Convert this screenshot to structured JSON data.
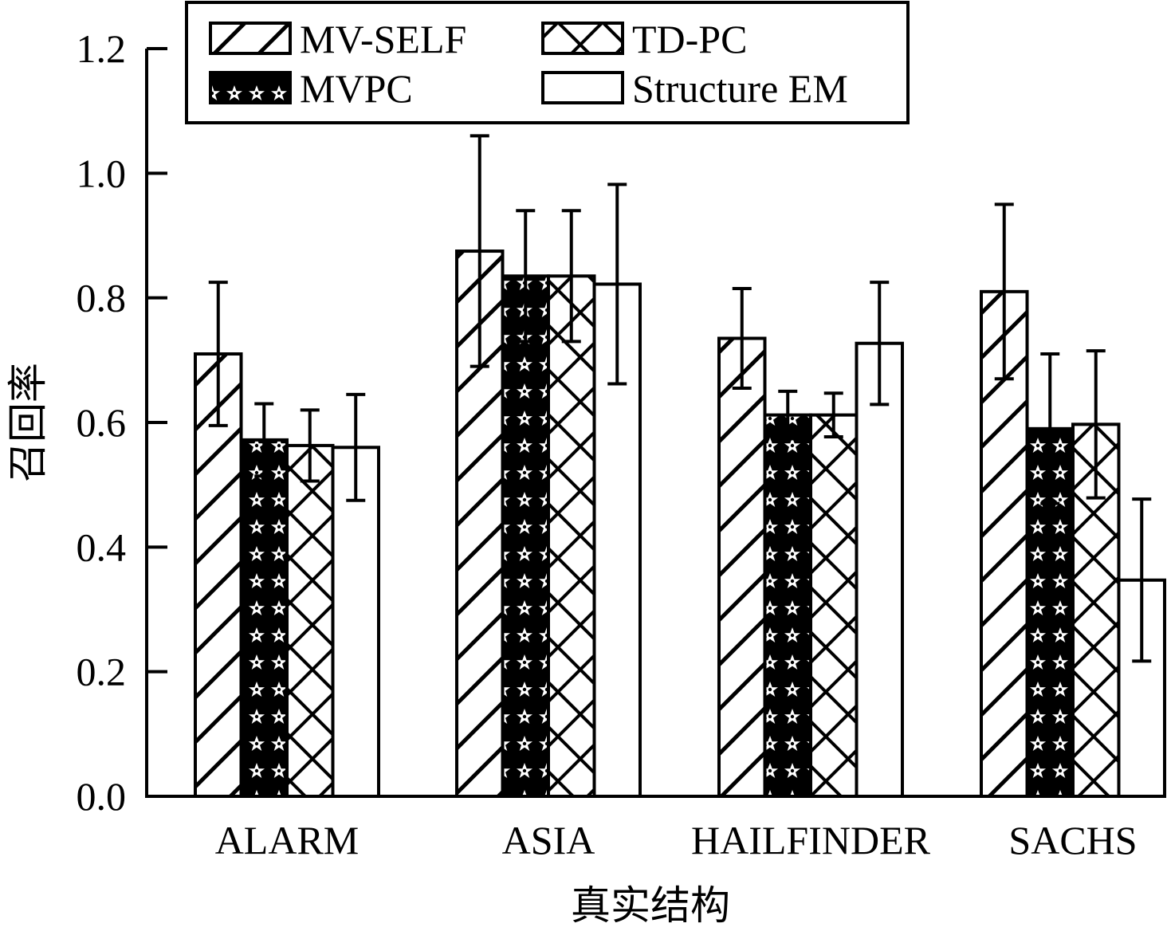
{
  "chart_data": {
    "type": "bar",
    "title": "",
    "xlabel": "真实结构",
    "ylabel": "召回率",
    "ylim": [
      0.0,
      1.2
    ],
    "yticks": [
      "0.0",
      "0.2",
      "0.4",
      "0.6",
      "0.8",
      "1.0",
      "1.2"
    ],
    "categories": [
      "ALARM",
      "ASIA",
      "HAILFINDER",
      "SACHS"
    ],
    "legend_position": "top-left",
    "series": [
      {
        "name": "MV-SELF",
        "pattern": "diagonal-hatch",
        "values": [
          0.71,
          0.875,
          0.735,
          0.81
        ],
        "errors": [
          0.115,
          0.185,
          0.08,
          0.14
        ]
      },
      {
        "name": "MVPC",
        "pattern": "star-pattern",
        "values": [
          0.572,
          0.835,
          0.612,
          0.59
        ],
        "errors": [
          0.058,
          0.105,
          0.038,
          0.12
        ]
      },
      {
        "name": "TD-PC",
        "pattern": "cross-hatch",
        "values": [
          0.563,
          0.835,
          0.612,
          0.597
        ],
        "errors": [
          0.057,
          0.105,
          0.035,
          0.118
        ]
      },
      {
        "name": "Structure EM",
        "pattern": "empty",
        "values": [
          0.56,
          0.822,
          0.727,
          0.347
        ],
        "errors": [
          0.085,
          0.16,
          0.098,
          0.13
        ]
      }
    ]
  }
}
